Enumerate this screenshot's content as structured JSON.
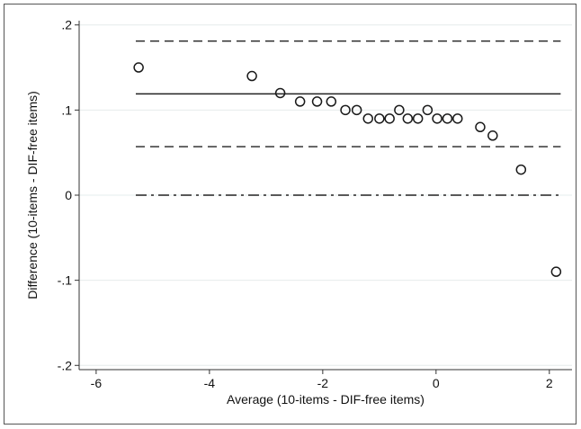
{
  "chart_data": {
    "type": "scatter",
    "title": "",
    "xlabel": "Average (10-items - DIF-free items)",
    "ylabel": "Difference (10-items - DIF-free items)",
    "xlim": [
      -6.3,
      2.4
    ],
    "ylim": [
      -0.205,
      0.205
    ],
    "x_ticks": [
      -6,
      -4,
      -2,
      0,
      2
    ],
    "x_tick_labels": [
      "-6",
      "-4",
      "-2",
      "0",
      "2"
    ],
    "y_ticks": [
      -0.2,
      -0.1,
      0,
      0.1,
      0.2
    ],
    "y_tick_labels": [
      "-.2",
      "-.1",
      "0",
      ".1",
      ".2"
    ],
    "grid": true,
    "series": [
      {
        "marker": "hollow-circle",
        "points": [
          {
            "x": -5.25,
            "y": 0.15
          },
          {
            "x": -3.25,
            "y": 0.14
          },
          {
            "x": -2.75,
            "y": 0.12
          },
          {
            "x": -2.4,
            "y": 0.11
          },
          {
            "x": -2.1,
            "y": 0.11
          },
          {
            "x": -1.85,
            "y": 0.11
          },
          {
            "x": -1.6,
            "y": 0.1
          },
          {
            "x": -1.4,
            "y": 0.1
          },
          {
            "x": -1.2,
            "y": 0.09
          },
          {
            "x": -1.0,
            "y": 0.09
          },
          {
            "x": -0.82,
            "y": 0.09
          },
          {
            "x": -0.65,
            "y": 0.1
          },
          {
            "x": -0.5,
            "y": 0.09
          },
          {
            "x": -0.32,
            "y": 0.09
          },
          {
            "x": -0.15,
            "y": 0.1
          },
          {
            "x": 0.02,
            "y": 0.09
          },
          {
            "x": 0.2,
            "y": 0.09
          },
          {
            "x": 0.38,
            "y": 0.09
          },
          {
            "x": 0.78,
            "y": 0.08
          },
          {
            "x": 1.0,
            "y": 0.07
          },
          {
            "x": 1.5,
            "y": 0.03
          },
          {
            "x": 2.12,
            "y": -0.09
          }
        ]
      }
    ],
    "reference_lines": [
      {
        "id": "upper-limit",
        "y": 0.181,
        "style": "dashed"
      },
      {
        "id": "mean-difference",
        "y": 0.119,
        "style": "solid"
      },
      {
        "id": "lower-limit",
        "y": 0.057,
        "style": "dashed"
      },
      {
        "id": "zero",
        "y": 0.0,
        "style": "dashdot"
      }
    ],
    "reference_x_range": [
      -5.3,
      2.2
    ]
  },
  "colors": {
    "marker": "#1a1a1a",
    "line": "#222222",
    "grid": "#e6ecec",
    "axis": "#333333",
    "frame": "#555555"
  }
}
